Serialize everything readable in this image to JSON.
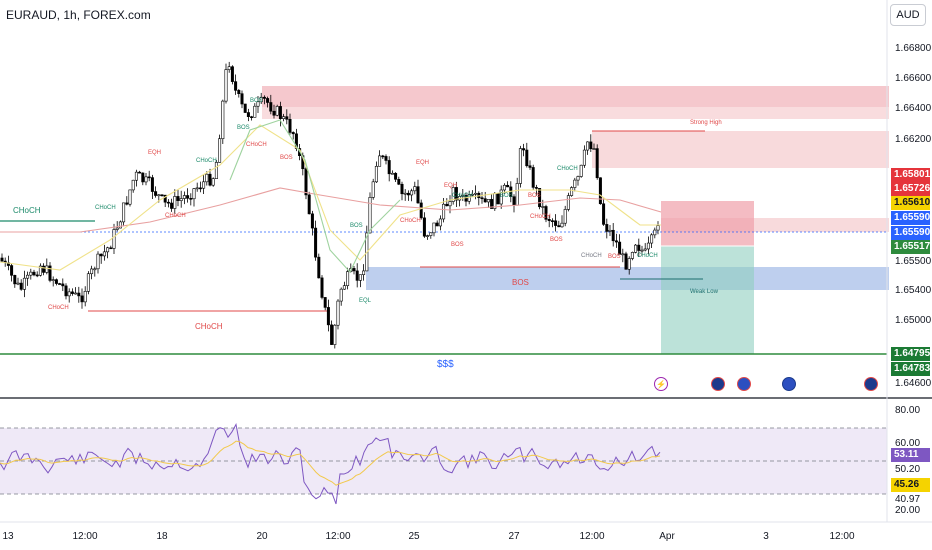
{
  "header": {
    "title": "EURAUD, 1h, FOREX.com",
    "currency": "AUD"
  },
  "price_axis": [
    "1.66800",
    "1.66600",
    "1.66400",
    "1.66200",
    "1.65800",
    "1.65600",
    "1.65400",
    "1.65200",
    "1.65000",
    "1.64600"
  ],
  "rsi_axis": [
    "80.00",
    "60.00",
    "50.20",
    "40.97",
    "20.00"
  ],
  "tags": {
    "t1": "1.65801",
    "t2": "1.65726",
    "t3": "1.65610",
    "t4": "1.65590",
    "t5": "1.65590",
    "t6": "1.65517",
    "t7": "1.65500",
    "t8": "1.64795",
    "t9": "1.64783",
    "rsi1": "53.11",
    "rsi2": "45.26"
  },
  "time_axis": [
    "13",
    "12:00",
    "18",
    "20",
    "12:00",
    "25",
    "27",
    "12:00",
    "Apr",
    "3",
    "12:00"
  ],
  "annotations": {
    "choch_left": "CHoCH",
    "choch_mid": "CHoCH",
    "sss": "$$$",
    "bos_big": "BOS",
    "strong_high": "Strong High",
    "weak_low": "Weak Low",
    "small": [
      "CHoCH",
      "CHoCH",
      "EQH",
      "CHoCH",
      "CHoCH",
      "BOS",
      "BOS",
      "CHoCH",
      "BOS",
      "EQL",
      "EQH",
      "CHoCH",
      "BOS",
      "EQH",
      "BOS",
      "BOS",
      "CHoCH",
      "CHoCH",
      "CHoCH",
      "BOS",
      "BOS",
      "CHoCH",
      "CHoCH",
      "BOS"
    ]
  },
  "colors": {
    "bull": "#ffffff",
    "bear": "#000000",
    "supply": "#f7c9cd",
    "demand": "#bccdee",
    "ema_red": "#e8a0a0",
    "ema_yellow": "#f0e28a",
    "ema_green": "#9fd39f",
    "rsi_line": "#7e57c2",
    "green_line": "#2e8b3d"
  },
  "icons": [
    "lightning-icon",
    "flag-au-icon",
    "flag-eu-icon",
    "flag-eu-icon",
    "flag-au-icon"
  ]
}
